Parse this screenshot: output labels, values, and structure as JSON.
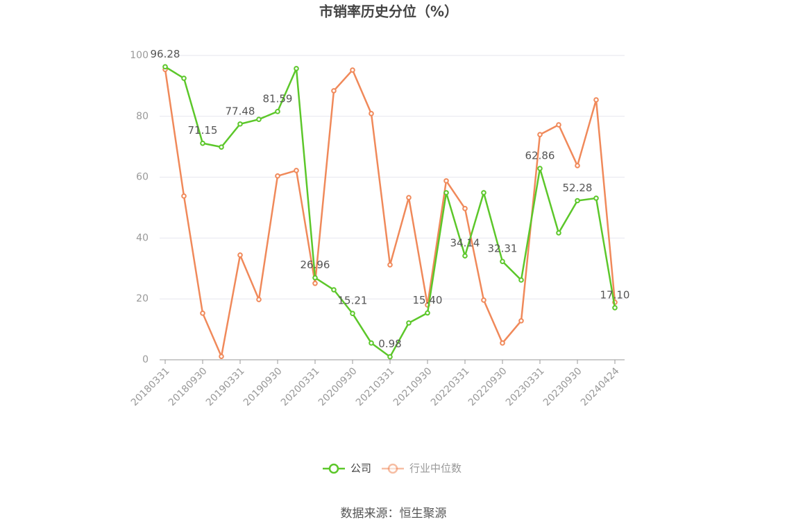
{
  "chart_data": {
    "type": "line",
    "title": "市销率历史分位（%）",
    "source": "数据来源：恒生聚源",
    "categories": [
      "20180331",
      null,
      "20180930",
      null,
      "20190331",
      null,
      "20190930",
      null,
      "20200331",
      null,
      "20200930",
      null,
      "20210331",
      null,
      "20210930",
      null,
      "20220331",
      null,
      "20220930",
      null,
      "20230331",
      null,
      "20230930",
      null,
      "20240424"
    ],
    "series": [
      {
        "name": "公司",
        "color": "#5cc72a",
        "values": [
          96.28,
          92.5,
          71.15,
          69.9,
          77.48,
          79.0,
          81.59,
          95.7,
          26.96,
          23.0,
          15.21,
          5.5,
          0.98,
          12.1,
          15.4,
          54.9,
          34.14,
          54.9,
          32.31,
          26.2,
          62.86,
          41.7,
          52.28,
          53.1,
          17.1
        ],
        "value_labels": [
          "96.28",
          null,
          "71.15",
          null,
          "77.48",
          null,
          "81.59",
          null,
          "26.96",
          null,
          "15.21",
          null,
          "0.98",
          null,
          "15.40",
          null,
          "34.14",
          null,
          "32.31",
          null,
          "62.86",
          null,
          "52.28",
          null,
          "17.10"
        ]
      },
      {
        "name": "行业中位数",
        "color": "#f0895a",
        "values": [
          95.4,
          53.8,
          15.3,
          1.1,
          34.4,
          19.8,
          60.4,
          62.2,
          25.1,
          88.4,
          95.2,
          80.9,
          31.2,
          53.3,
          18.0,
          58.8,
          49.7,
          19.6,
          5.5,
          12.8,
          74.0,
          77.2,
          63.8,
          85.4,
          18.9
        ]
      }
    ],
    "ylim": [
      0,
      100
    ],
    "yticks": [
      0,
      20,
      40,
      60,
      80,
      100
    ],
    "grid": true
  }
}
